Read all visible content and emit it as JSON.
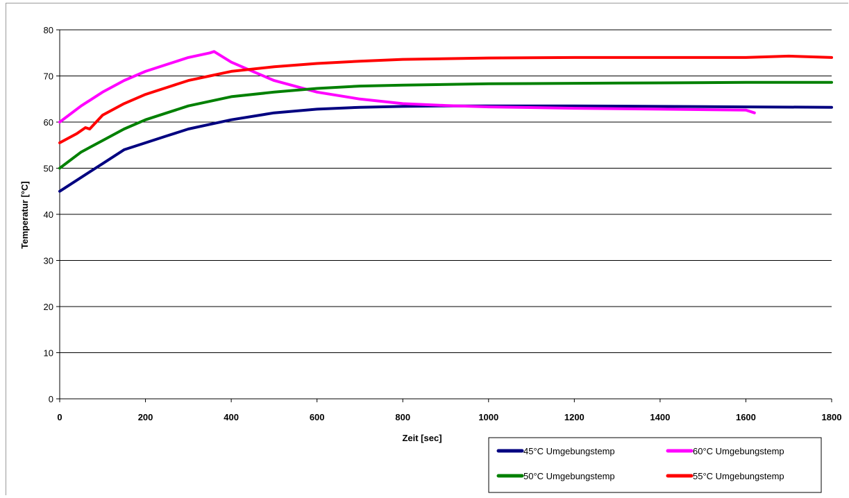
{
  "chart_data": {
    "type": "line",
    "title": "",
    "xlabel": "Zeit [sec]",
    "ylabel": "Temperatur [°C]",
    "xlim": [
      0,
      1800
    ],
    "ylim": [
      0,
      80
    ],
    "x_ticks": [
      "0",
      "200",
      "400",
      "600",
      "800",
      "1000",
      "1200",
      "1400",
      "1600",
      "1800"
    ],
    "y_ticks": [
      "0",
      "10",
      "20",
      "30",
      "40",
      "50",
      "60",
      "70",
      "80"
    ],
    "grid": "horizontal",
    "legend_position": "bottom-right",
    "series": [
      {
        "name": "45°C Umgebungstemp",
        "color": "#000080",
        "x": [
          0,
          50,
          100,
          150,
          200,
          250,
          300,
          350,
          400,
          500,
          600,
          700,
          800,
          900,
          1000,
          1200,
          1400,
          1600,
          1800
        ],
        "y": [
          45,
          48,
          51,
          54,
          55.5,
          57,
          58.5,
          59.5,
          60.5,
          62,
          62.8,
          63.2,
          63.4,
          63.5,
          63.5,
          63.5,
          63.4,
          63.3,
          63.2
        ]
      },
      {
        "name": "60°C Umgebungstemp",
        "color": "#ff00ff",
        "x": [
          0,
          50,
          100,
          150,
          200,
          250,
          300,
          350,
          360,
          400,
          450,
          500,
          600,
          700,
          800,
          900,
          1000,
          1200,
          1400,
          1600,
          1620
        ],
        "y": [
          60,
          63.5,
          66.5,
          69,
          71,
          72.5,
          74,
          75,
          75.3,
          73,
          71,
          69,
          66.5,
          65,
          64,
          63.6,
          63.3,
          63,
          62.8,
          62.6,
          62
        ]
      },
      {
        "name": "50°C Umgebungstemp",
        "color": "#008000",
        "x": [
          0,
          50,
          100,
          150,
          200,
          250,
          300,
          350,
          400,
          500,
          600,
          700,
          800,
          1000,
          1200,
          1400,
          1600,
          1800
        ],
        "y": [
          50,
          53.5,
          56,
          58.5,
          60.5,
          62,
          63.5,
          64.5,
          65.5,
          66.5,
          67.3,
          67.8,
          68,
          68.3,
          68.4,
          68.5,
          68.6,
          68.6
        ]
      },
      {
        "name": "55°C Umgebungstemp",
        "color": "#ff0000",
        "x": [
          0,
          40,
          60,
          70,
          100,
          150,
          200,
          250,
          300,
          350,
          400,
          500,
          600,
          700,
          800,
          1000,
          1200,
          1400,
          1600,
          1700,
          1800
        ],
        "y": [
          55.5,
          57.5,
          58.8,
          58.5,
          61.5,
          64,
          66,
          67.5,
          69,
          70,
          71,
          72,
          72.7,
          73.2,
          73.6,
          73.9,
          74,
          74,
          74,
          74.3,
          74
        ]
      }
    ]
  }
}
